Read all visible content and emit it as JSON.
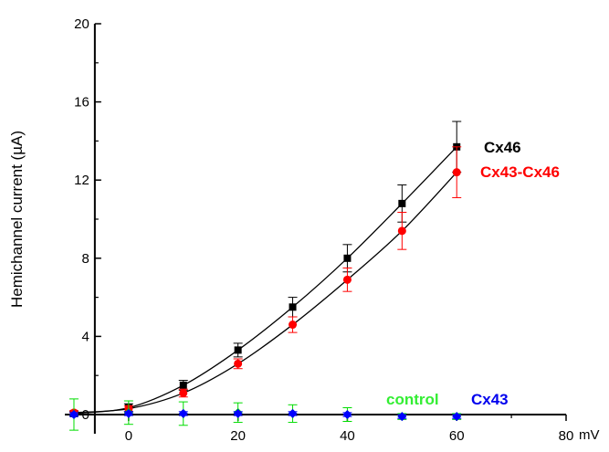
{
  "chart_data": {
    "type": "scatter",
    "title": "",
    "ylabel": "Hemichannel current (µA)",
    "xlabel": "mV",
    "xlim": [
      -12,
      80
    ],
    "ylim": [
      0,
      20
    ],
    "x_ticks": [
      0,
      20,
      40,
      60,
      80
    ],
    "x_tick_labels": [
      "0",
      "20",
      "40",
      "60",
      "80"
    ],
    "y_ticks": [
      0,
      4,
      8,
      12,
      16,
      20
    ],
    "y_tick_labels": [
      "0",
      "4",
      "8",
      "12",
      "16",
      "20"
    ],
    "grid": false,
    "series": [
      {
        "name": "Cx46",
        "color": "#000000",
        "marker": "square",
        "connected": true,
        "x": [
          -10,
          0,
          10,
          20,
          30,
          40,
          50,
          60
        ],
        "y": [
          0.05,
          0.35,
          1.5,
          3.3,
          5.5,
          8.0,
          10.8,
          13.7
        ],
        "err": [
          0.1,
          0.2,
          0.25,
          0.35,
          0.5,
          0.7,
          0.95,
          1.3
        ]
      },
      {
        "name": "Cx43-Cx46",
        "color": "#ff0000",
        "marker": "circle",
        "connected": true,
        "x": [
          -10,
          0,
          10,
          20,
          30,
          40,
          50,
          60
        ],
        "y": [
          0.1,
          0.3,
          1.1,
          2.6,
          4.6,
          6.9,
          9.4,
          12.4
        ],
        "err": [
          0.1,
          0.15,
          0.2,
          0.25,
          0.4,
          0.6,
          0.95,
          1.3
        ]
      },
      {
        "name": "control",
        "color": "#00dd00",
        "marker": "diamond",
        "connected": false,
        "x": [
          -10,
          0,
          10,
          20,
          30,
          40,
          50,
          60
        ],
        "y": [
          0.0,
          0.1,
          0.05,
          0.1,
          0.05,
          0.0,
          -0.1,
          -0.1
        ],
        "err": [
          0.8,
          0.6,
          0.6,
          0.5,
          0.45,
          0.35,
          0.15,
          0.15
        ]
      },
      {
        "name": "Cx43",
        "color": "#0000ff",
        "marker": "diamond",
        "connected": false,
        "x": [
          -10,
          0,
          10,
          20,
          30,
          40,
          50,
          60
        ],
        "y": [
          0.0,
          0.05,
          0.05,
          0.05,
          0.05,
          0.0,
          -0.1,
          -0.1
        ],
        "err": [
          0.1,
          0.1,
          0.1,
          0.1,
          0.1,
          0.1,
          0.1,
          0.1
        ]
      }
    ],
    "annotations": [
      "Cx46",
      "Cx43-Cx46",
      "control",
      "Cx43"
    ]
  }
}
